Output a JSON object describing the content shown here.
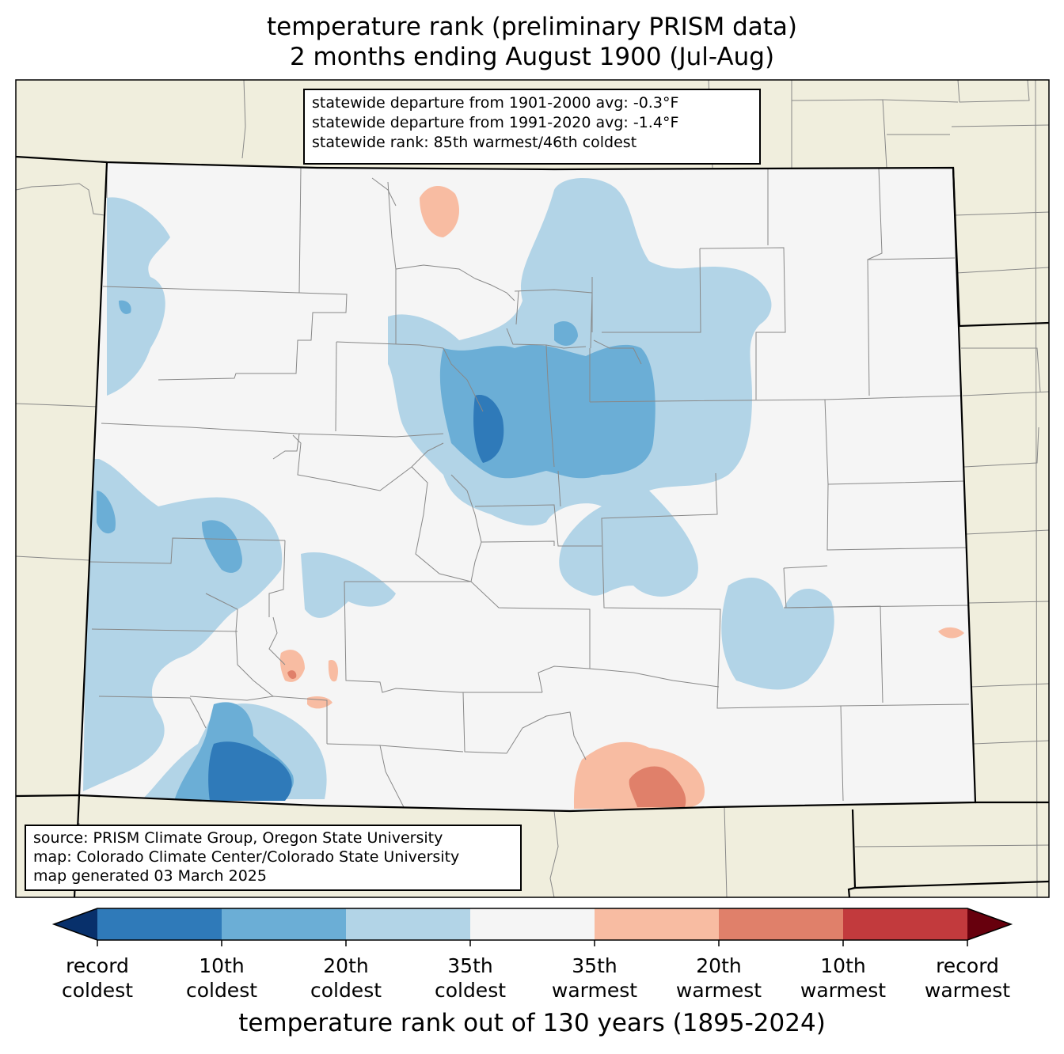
{
  "title": {
    "line1": "temperature rank (preliminary PRISM data)",
    "line2": "2 months ending August 1900 (Jul-Aug)"
  },
  "stats": {
    "line1": "statewide departure from 1901-2000 avg: -0.3°F",
    "line2": "statewide departure from 1991-2020 avg: -1.4°F",
    "line3": "statewide rank: 85th warmest/46th coldest"
  },
  "source": {
    "line1": "source: PRISM Climate Group, Oregon State University",
    "line2": "map: Colorado Climate Center/Colorado State University",
    "line3": "map generated 03 March 2025"
  },
  "colorbar": {
    "title": "temperature rank out of 130 years (1895-2024)",
    "tick_labels": [
      [
        "record",
        "coldest"
      ],
      [
        "10th",
        "coldest"
      ],
      [
        "20th",
        "coldest"
      ],
      [
        "35th",
        "coldest"
      ],
      [
        "35th",
        "warmest"
      ],
      [
        "20th",
        "warmest"
      ],
      [
        "10th",
        "warmest"
      ],
      [
        "record",
        "warmest"
      ]
    ],
    "colors": [
      "#08306b",
      "#2f7ab9",
      "#6baed6",
      "#b2d4e7",
      "#f5f5f5",
      "#f8bca2",
      "#e0806a",
      "#c23a3d",
      "#67000d"
    ]
  },
  "map_colors": {
    "background": "#f0eedd",
    "state_fill": "#f5f5f5",
    "county_line": "#888888",
    "state_line": "#000000"
  }
}
